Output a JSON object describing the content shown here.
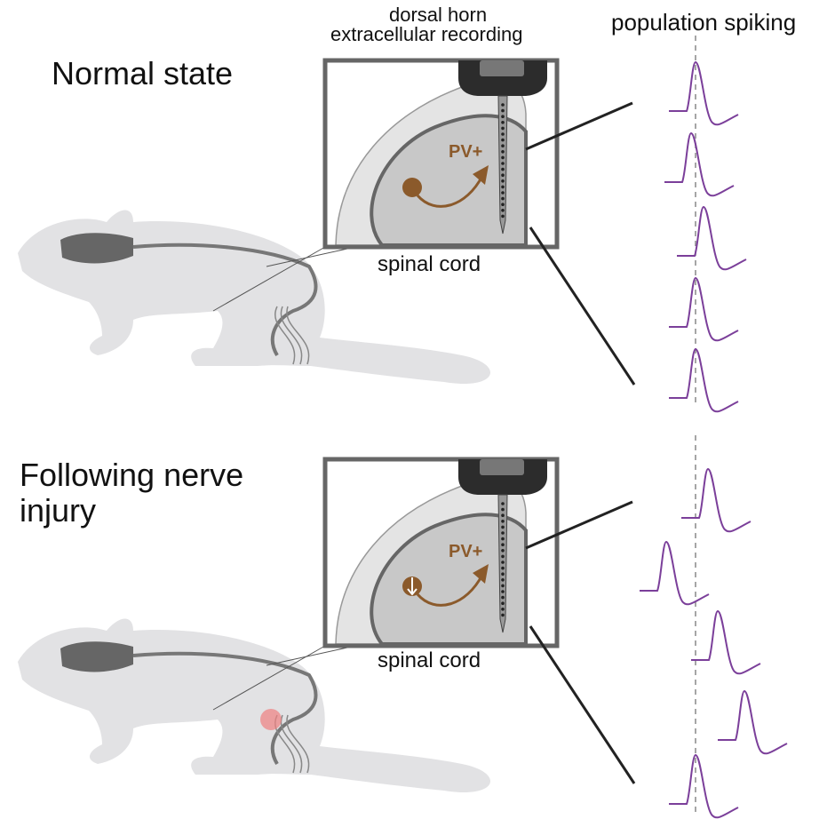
{
  "header": {
    "recording_label_line1": "dorsal horn",
    "recording_label_line2": "extracellular recording",
    "spiking_label": "population spiking"
  },
  "panels": [
    {
      "title": "Normal state",
      "cell_label": "PV+",
      "region_label": "spinal cord",
      "cell_state": "normal"
    },
    {
      "title_line1": "Following nerve",
      "title_line2": "injury",
      "cell_label": "PV+",
      "region_label": "spinal cord",
      "cell_state": "reduced",
      "injury_marker": true
    }
  ],
  "colors": {
    "spike_trace": "#7b3f9a",
    "pv_neuron": "#8b5a2b",
    "mouse_body": "#e2e2e4",
    "probe": "#333333",
    "injury": "#f08080"
  }
}
